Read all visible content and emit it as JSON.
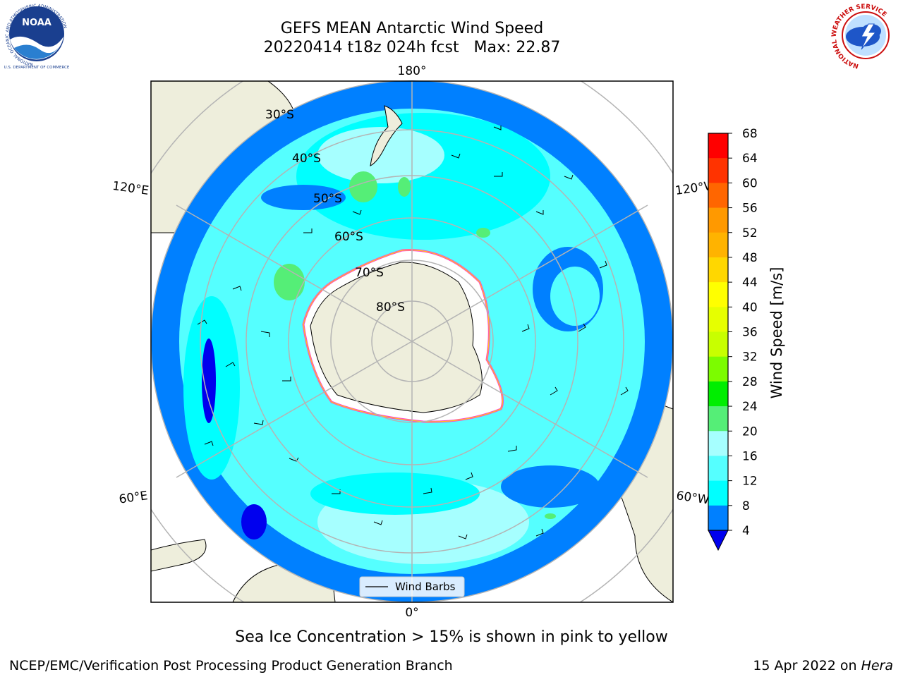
{
  "header": {
    "title_line1": "GEFS MEAN Antarctic Wind Speed",
    "title_line2": "20220414 t18z 024h fcst   Max: 22.87"
  },
  "logos": {
    "left": {
      "name": "NOAA",
      "ring_text": "NATIONAL OCEANIC AND ATMOSPHERIC ADMINISTRATION",
      "bottom_text": "U.S. DEPARTMENT OF COMMERCE"
    },
    "right": {
      "ring_text": "NATIONAL WEATHER SERVICE"
    }
  },
  "map": {
    "longitude_labels": {
      "top": "180°",
      "bottom": "0°",
      "left_upper": "120°E",
      "left_lower": "60°E",
      "right_upper": "120°W",
      "right_lower": "60°W"
    },
    "latitude_labels": [
      "30°S",
      "40°S",
      "50°S",
      "60°S",
      "70°S",
      "80°S"
    ],
    "legend_label": "Wind Barbs"
  },
  "colorbar": {
    "label": "Wind Speed [m/s]",
    "ticks": [
      "68",
      "64",
      "60",
      "56",
      "52",
      "48",
      "44",
      "40",
      "36",
      "32",
      "28",
      "24",
      "20",
      "16",
      "12",
      "8",
      "4"
    ],
    "colors": [
      "#ff0000",
      "#ff3300",
      "#ff6600",
      "#ff9900",
      "#ffb300",
      "#ffd700",
      "#ffff00",
      "#e6ff00",
      "#c8ff00",
      "#7cfc00",
      "#00ee00",
      "#55ee77",
      "#a6ffff",
      "#55ffff",
      "#00ffff",
      "#0080ff"
    ],
    "under_color": "#0000ee"
  },
  "notes": {
    "sea_ice": "Sea Ice Concentration > 15% is shown in pink to yellow"
  },
  "footer": {
    "left": "NCEP/EMC/Verification Post Processing Product Generation Branch",
    "right_date": "15 Apr 2022 on ",
    "right_host": "Hera"
  }
}
